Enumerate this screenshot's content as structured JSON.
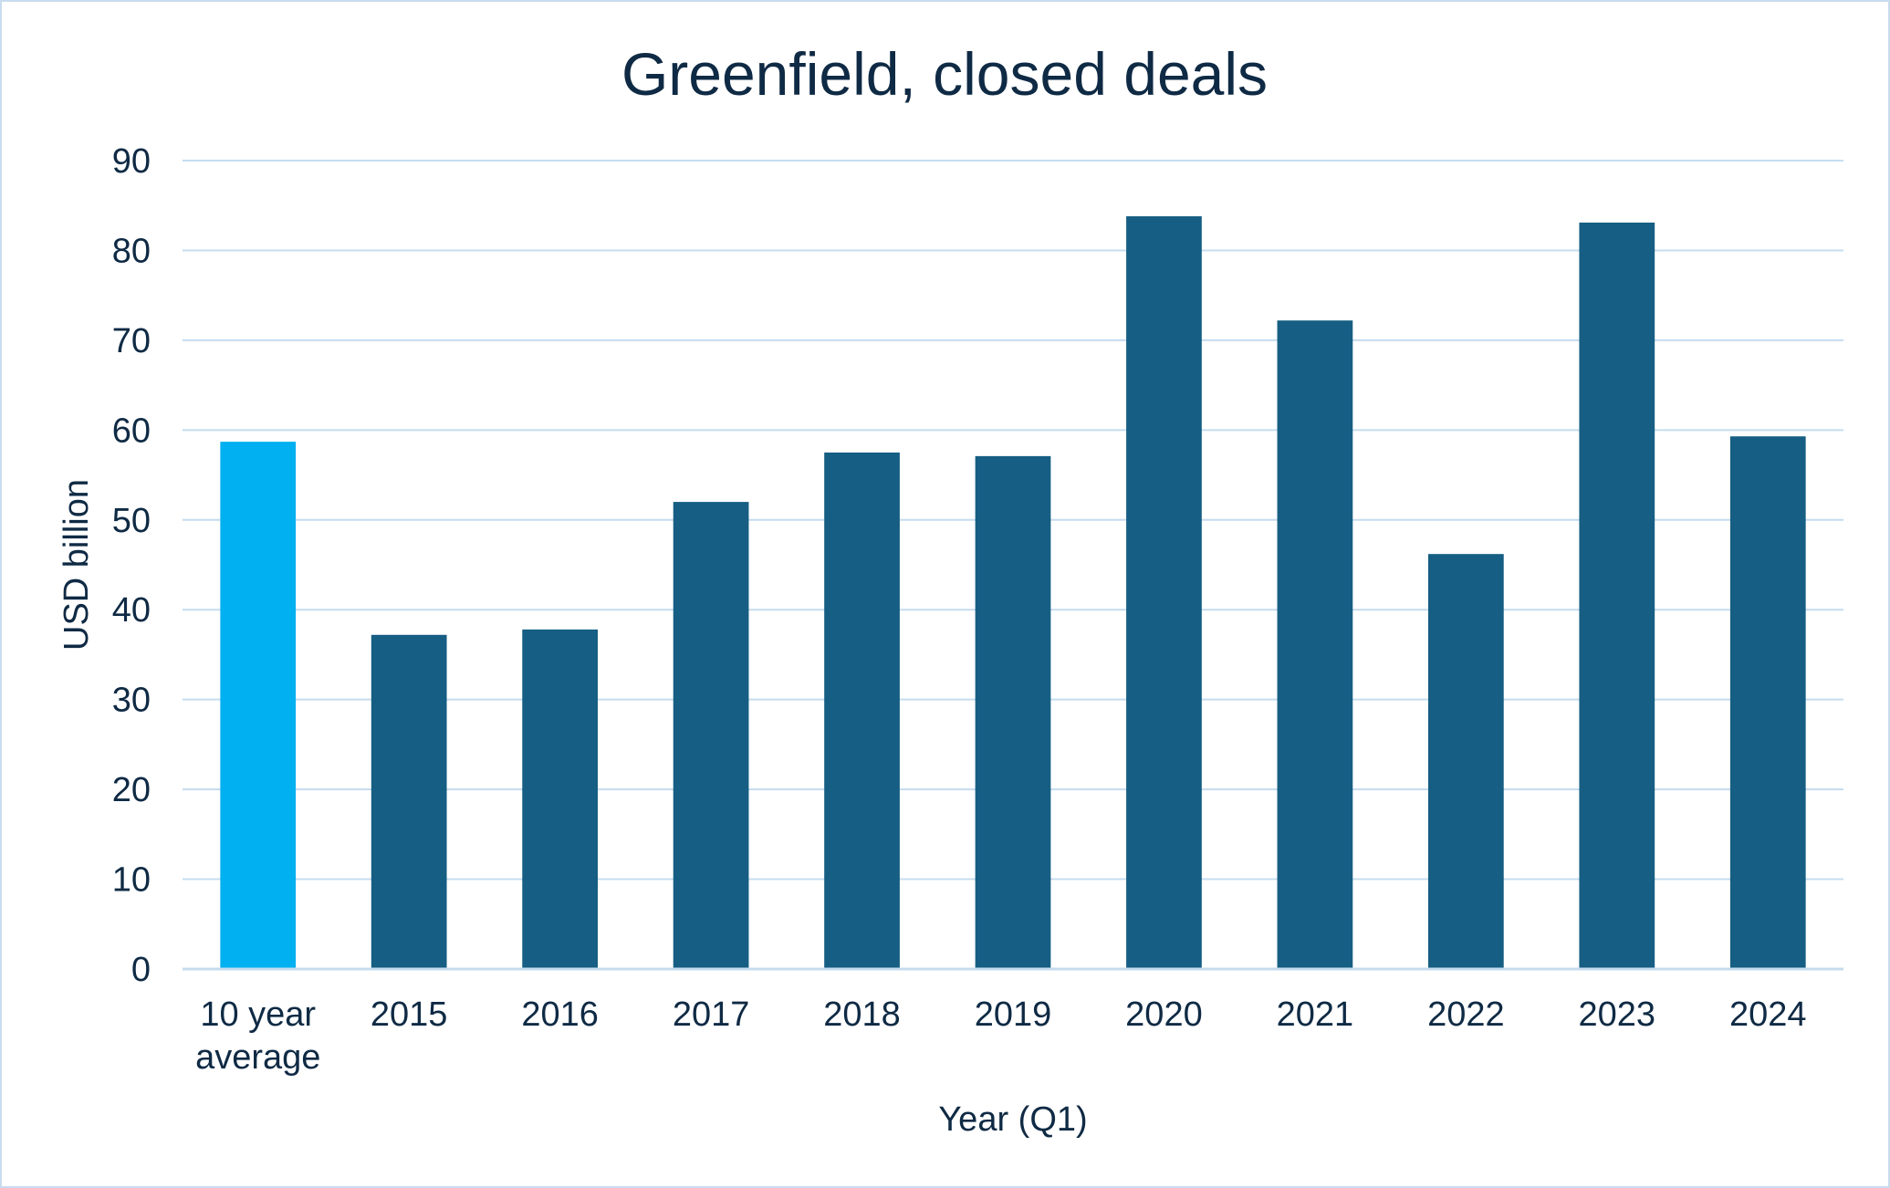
{
  "chart_data": {
    "type": "bar",
    "title": "Greenfield, closed deals",
    "xlabel": "Year (Q1)",
    "ylabel": "USD billion",
    "categories": [
      "10 year average",
      "2015",
      "2016",
      "2017",
      "2018",
      "2019",
      "2020",
      "2021",
      "2022",
      "2023",
      "2024"
    ],
    "category_lines": [
      [
        "10 year",
        "average"
      ],
      [
        "2015"
      ],
      [
        "2016"
      ],
      [
        "2017"
      ],
      [
        "2018"
      ],
      [
        "2019"
      ],
      [
        "2020"
      ],
      [
        "2021"
      ],
      [
        "2022"
      ],
      [
        "2023"
      ],
      [
        "2024"
      ]
    ],
    "values": [
      58.7,
      37.2,
      37.8,
      52.0,
      57.5,
      57.1,
      83.8,
      72.2,
      46.2,
      83.1,
      59.3
    ],
    "ylim": [
      0,
      90
    ],
    "yticks": [
      0,
      10,
      20,
      30,
      40,
      50,
      60,
      70,
      80,
      90
    ],
    "grid": true,
    "legend": "none",
    "colors": {
      "highlight": "#00b0f0",
      "bar": "#165e83",
      "grid": "#c5dcef",
      "text": "#0f2a44"
    },
    "highlight_index": 0
  }
}
